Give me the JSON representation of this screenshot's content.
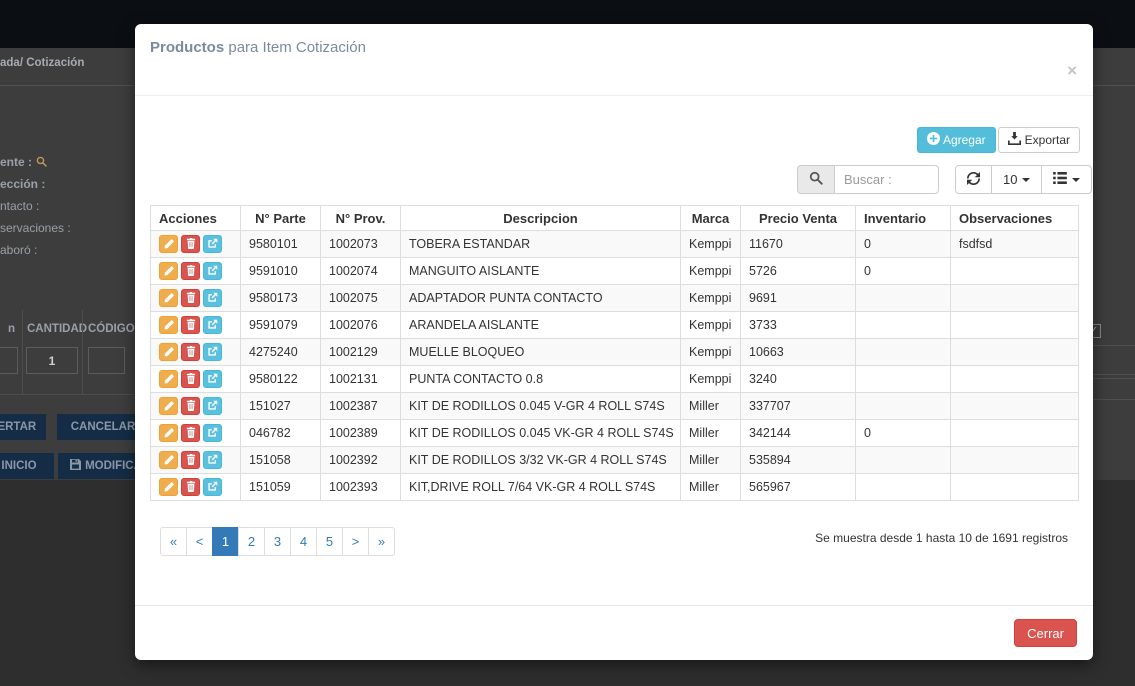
{
  "backdrop": {
    "breadcrumb": "ada/ Cotización",
    "form_labels": [
      "ente :",
      "ección :",
      "ntacto :",
      "servaciones :",
      "aboró :"
    ],
    "grid": {
      "col_partial": "n",
      "col_cantidad": "CANTIDAD",
      "col_codigo": "CÓDIGO",
      "cantidad_value": "1"
    },
    "buttons": [
      "SERTAR",
      "CANCELAR",
      "INICIO",
      "MODIFICA"
    ]
  },
  "modal": {
    "title_strong": "Productos",
    "title_rest": " para Item Cotización",
    "close_label": "×",
    "toolbar": {
      "agregar_label": "Agregar",
      "exportar_label": "Exportar"
    },
    "search": {
      "placeholder": "Buscar :"
    },
    "controls": {
      "page_size": "10"
    },
    "table": {
      "headers": [
        "Acciones",
        "N° Parte",
        "N° Prov.",
        "Descripcion",
        "Marca",
        "Precio Venta",
        "Inventario",
        "Observaciones"
      ],
      "action_icons": [
        "pencil-icon",
        "trash-icon",
        "share-icon"
      ],
      "rows": [
        {
          "parte": "9580101",
          "prov": "1002073",
          "descripcion": "TOBERA ESTANDAR",
          "marca": "Kemppi",
          "precio": "11670",
          "inventario": "0",
          "observaciones": "fsdfsd"
        },
        {
          "parte": "9591010",
          "prov": "1002074",
          "descripcion": "MANGUITO AISLANTE",
          "marca": "Kemppi",
          "precio": "5726",
          "inventario": "0",
          "observaciones": ""
        },
        {
          "parte": "9580173",
          "prov": "1002075",
          "descripcion": "ADAPTADOR PUNTA CONTACTO",
          "marca": "Kemppi",
          "precio": "9691",
          "inventario": "",
          "observaciones": ""
        },
        {
          "parte": "9591079",
          "prov": "1002076",
          "descripcion": "ARANDELA AISLANTE",
          "marca": "Kemppi",
          "precio": "3733",
          "inventario": "",
          "observaciones": ""
        },
        {
          "parte": "4275240",
          "prov": "1002129",
          "descripcion": "MUELLE BLOQUEO",
          "marca": "Kemppi",
          "precio": "10663",
          "inventario": "",
          "observaciones": ""
        },
        {
          "parte": "9580122",
          "prov": "1002131",
          "descripcion": "PUNTA CONTACTO 0.8",
          "marca": "Kemppi",
          "precio": "3240",
          "inventario": "",
          "observaciones": ""
        },
        {
          "parte": "151027",
          "prov": "1002387",
          "descripcion": "KIT DE RODILLOS 0.045 V-GR 4 ROLL S74S",
          "marca": "Miller",
          "precio": "337707",
          "inventario": "",
          "observaciones": ""
        },
        {
          "parte": "046782",
          "prov": "1002389",
          "descripcion": "KIT DE RODILLOS 0.045 VK-GR 4 ROLL S74S",
          "marca": "Miller",
          "precio": "342144",
          "inventario": "0",
          "observaciones": ""
        },
        {
          "parte": "151058",
          "prov": "1002392",
          "descripcion": "KIT DE RODILLOS 3/32 VK-GR 4 ROLL S74S",
          "marca": "Miller",
          "precio": "535894",
          "inventario": "",
          "observaciones": ""
        },
        {
          "parte": "151059",
          "prov": "1002393",
          "descripcion": "KIT,DRIVE ROLL 7/64 VK-GR 4 ROLL S74S",
          "marca": "Miller",
          "precio": "565967",
          "inventario": "",
          "observaciones": ""
        }
      ]
    },
    "pagination": {
      "pages": [
        "«",
        "<",
        "1",
        "2",
        "3",
        "4",
        "5",
        ">",
        "»"
      ],
      "active": "1"
    },
    "info_text": "Se muestra desde 1 hasta 10 de 1691 registros",
    "footer": {
      "cerrar_label": "Cerrar"
    }
  },
  "colors": {
    "accent_info": "#5bc0de",
    "accent_primary": "#337ab7",
    "accent_danger": "#d9534f",
    "accent_warning": "#f0ad4e",
    "title_color": "#7b8a9e",
    "table_border": "#dddddd"
  }
}
